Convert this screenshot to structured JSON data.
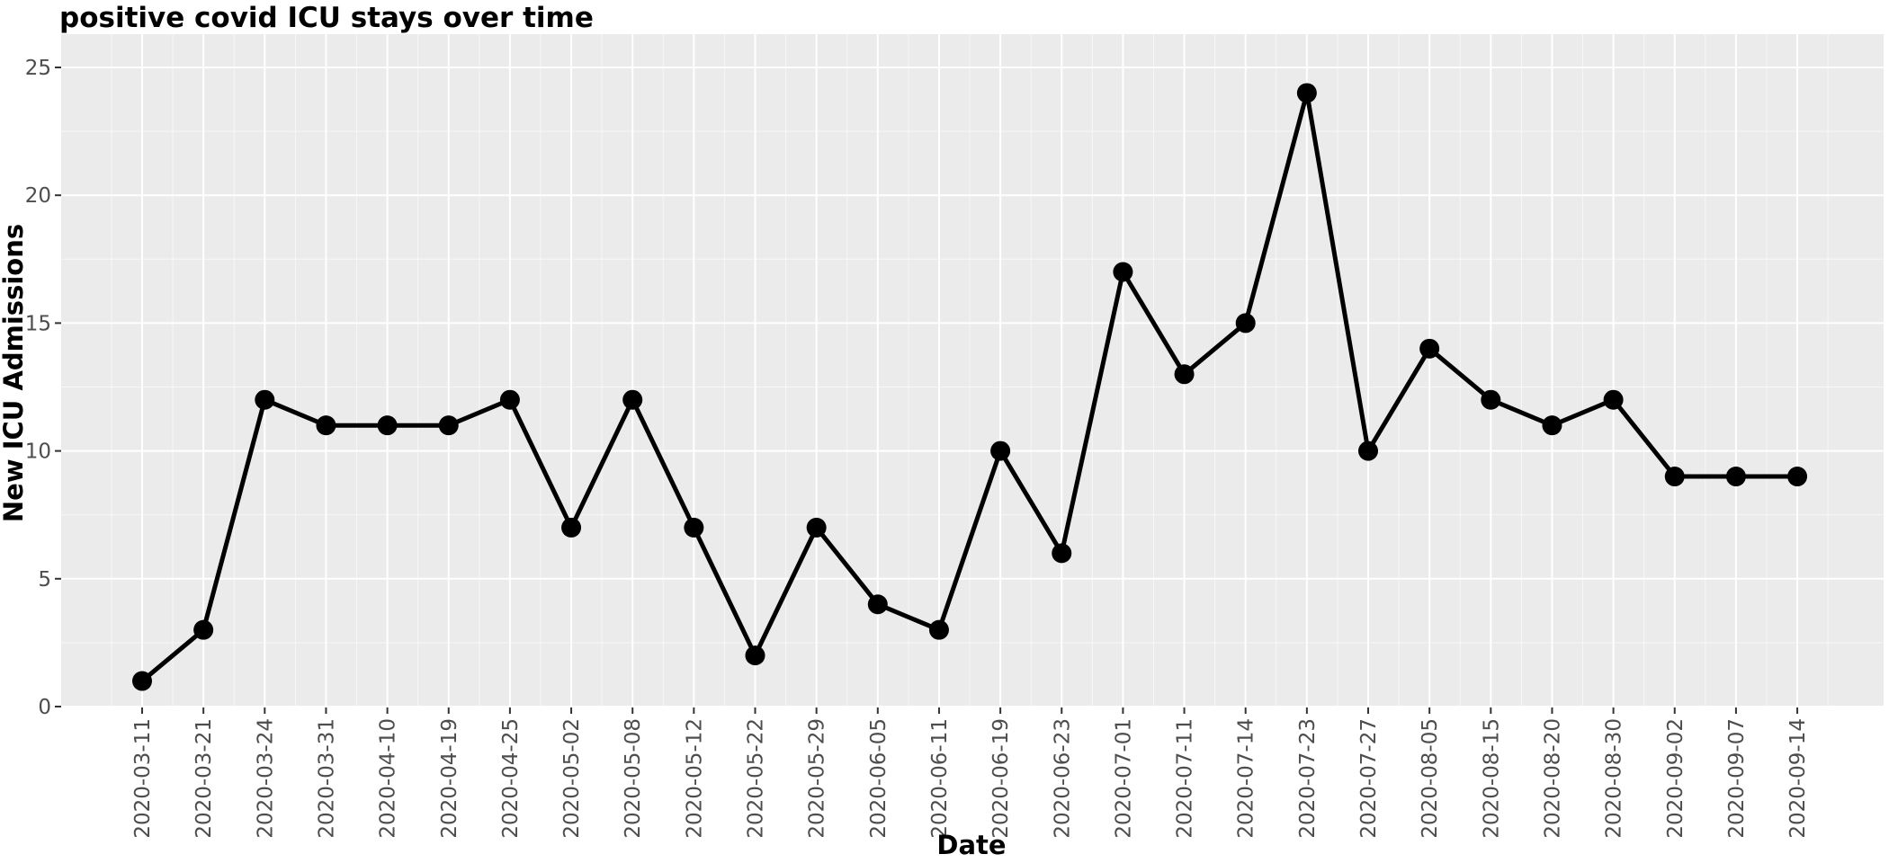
{
  "chart_data": {
    "type": "line",
    "title": "positive covid ICU stays over time",
    "xlabel": "Date",
    "ylabel": "New ICU Admissions",
    "categories": [
      "2020-03-11",
      "2020-03-21",
      "2020-03-24",
      "2020-03-31",
      "2020-04-10",
      "2020-04-19",
      "2020-04-25",
      "2020-05-02",
      "2020-05-08",
      "2020-05-12",
      "2020-05-22",
      "2020-05-29",
      "2020-06-05",
      "2020-06-11",
      "2020-06-19",
      "2020-06-23",
      "2020-07-01",
      "2020-07-11",
      "2020-07-14",
      "2020-07-23",
      "2020-07-27",
      "2020-08-05",
      "2020-08-15",
      "2020-08-20",
      "2020-08-30",
      "2020-09-02",
      "2020-09-07",
      "2020-09-14"
    ],
    "values": [
      1,
      3,
      12,
      11,
      11,
      11,
      12,
      7,
      12,
      7,
      2,
      7,
      4,
      3,
      10,
      6,
      17,
      13,
      15,
      24,
      10,
      14,
      12,
      11,
      12,
      9,
      9,
      9
    ],
    "ylim": [
      0,
      25
    ],
    "yticks": [
      0,
      5,
      10,
      15,
      20,
      25
    ],
    "grid": true,
    "colors": {
      "line": "#000000",
      "panel": "#ebebeb",
      "grid": "#ffffff"
    }
  }
}
